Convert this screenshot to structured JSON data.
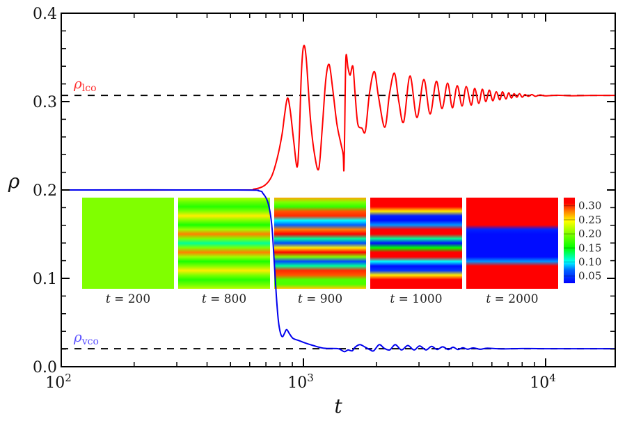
{
  "chart_data": {
    "type": "line",
    "xlabel": "t",
    "ylabel": "ρ",
    "x_scale": "log",
    "xlim": [
      100,
      19400
    ],
    "ylim": [
      0.0,
      0.4
    ],
    "x_ticks": [
      {
        "value": 100,
        "base": "10",
        "exp": "2"
      },
      {
        "value": 1000,
        "base": "10",
        "exp": "3"
      },
      {
        "value": 10000,
        "base": "10",
        "exp": "4"
      }
    ],
    "y_ticks": [
      {
        "value": 0.0,
        "label": "0.0"
      },
      {
        "value": 0.1,
        "label": "0.1"
      },
      {
        "value": 0.2,
        "label": "0.2"
      },
      {
        "value": 0.3,
        "label": "0.3"
      },
      {
        "value": 0.4,
        "label": "0.4"
      }
    ],
    "y_minor_step": 0.02,
    "grid": false,
    "reference_lines": [
      {
        "label_main": "ρ",
        "label_sub": "lco",
        "value": 0.307,
        "color": "#ff3030",
        "style": "dashed"
      },
      {
        "label_main": "ρ",
        "label_sub": "vco",
        "value": 0.0204,
        "color": "#5a50ff",
        "style": "dashed"
      }
    ],
    "series": [
      {
        "color": "#ff0000",
        "points": [
          [
            100,
            0.2
          ],
          [
            530,
            0.2
          ],
          [
            625,
            0.201
          ],
          [
            690,
            0.205
          ],
          [
            738,
            0.215
          ],
          [
            778,
            0.235
          ],
          [
            815,
            0.262
          ],
          [
            836,
            0.285
          ],
          [
            859,
            0.304
          ],
          [
            882,
            0.29
          ],
          [
            912,
            0.255
          ],
          [
            942,
            0.226
          ],
          [
            961,
            0.26
          ],
          [
            980,
            0.33
          ],
          [
            1000,
            0.362
          ],
          [
            1026,
            0.35
          ],
          [
            1069,
            0.28
          ],
          [
            1112,
            0.24
          ],
          [
            1157,
            0.224
          ],
          [
            1196,
            0.27
          ],
          [
            1237,
            0.325
          ],
          [
            1277,
            0.342
          ],
          [
            1320,
            0.315
          ],
          [
            1374,
            0.275
          ],
          [
            1429,
            0.252
          ],
          [
            1459,
            0.24
          ],
          [
            1469,
            0.222
          ],
          [
            1479,
            0.26
          ],
          [
            1497,
            0.349
          ],
          [
            1528,
            0.338
          ],
          [
            1559,
            0.33
          ],
          [
            1600,
            0.34
          ],
          [
            1633,
            0.31
          ],
          [
            1676,
            0.275
          ],
          [
            1743,
            0.27
          ],
          [
            1803,
            0.267
          ],
          [
            1875,
            0.31
          ],
          [
            1963,
            0.334
          ],
          [
            2043,
            0.305
          ],
          [
            2168,
            0.271
          ],
          [
            2270,
            0.31
          ],
          [
            2377,
            0.332
          ],
          [
            2477,
            0.3
          ],
          [
            2594,
            0.277
          ],
          [
            2754,
            0.329
          ],
          [
            2941,
            0.282
          ],
          [
            3141,
            0.325
          ],
          [
            3334,
            0.286
          ],
          [
            3538,
            0.323
          ],
          [
            3733,
            0.292
          ],
          [
            3936,
            0.321
          ],
          [
            4121,
            0.293
          ],
          [
            4315,
            0.318
          ],
          [
            4518,
            0.295
          ],
          [
            4699,
            0.317
          ],
          [
            4927,
            0.296
          ],
          [
            5093,
            0.315
          ],
          [
            5297,
            0.298
          ],
          [
            5478,
            0.314
          ],
          [
            5662,
            0.3
          ],
          [
            5853,
            0.313
          ],
          [
            6050,
            0.301
          ],
          [
            6254,
            0.311
          ],
          [
            6465,
            0.302
          ],
          [
            6634,
            0.311
          ],
          [
            6857,
            0.303
          ],
          [
            7036,
            0.31
          ],
          [
            7220,
            0.304
          ],
          [
            7409,
            0.309
          ],
          [
            7603,
            0.305
          ],
          [
            7801,
            0.309
          ],
          [
            8005,
            0.305
          ],
          [
            8214,
            0.308
          ],
          [
            8490,
            0.306
          ],
          [
            8776,
            0.308
          ],
          [
            9071,
            0.306
          ],
          [
            9486,
            0.3075
          ],
          [
            10000,
            0.3065
          ],
          [
            11120,
            0.3072
          ],
          [
            12690,
            0.3066
          ],
          [
            15480,
            0.307
          ],
          [
            19370,
            0.307
          ]
        ]
      },
      {
        "color": "#0000ee",
        "points": [
          [
            100,
            0.2
          ],
          [
            530,
            0.2
          ],
          [
            654,
            0.199
          ],
          [
            681,
            0.196
          ],
          [
            709,
            0.188
          ],
          [
            728,
            0.175
          ],
          [
            743,
            0.155
          ],
          [
            757,
            0.12
          ],
          [
            773,
            0.08
          ],
          [
            788,
            0.052
          ],
          [
            804,
            0.038
          ],
          [
            820,
            0.034
          ],
          [
            836,
            0.038
          ],
          [
            853,
            0.042
          ],
          [
            877,
            0.037
          ],
          [
            906,
            0.032
          ],
          [
            949,
            0.03
          ],
          [
            1013,
            0.027
          ],
          [
            1097,
            0.024
          ],
          [
            1211,
            0.021
          ],
          [
            1383,
            0.0205
          ],
          [
            1429,
            0.019
          ],
          [
            1479,
            0.017
          ],
          [
            1528,
            0.019
          ],
          [
            1590,
            0.018
          ],
          [
            1633,
            0.022
          ],
          [
            1710,
            0.025
          ],
          [
            1803,
            0.022
          ],
          [
            1889,
            0.019
          ],
          [
            1950,
            0.018
          ],
          [
            2056,
            0.025
          ],
          [
            2153,
            0.021
          ],
          [
            2270,
            0.019
          ],
          [
            2394,
            0.025
          ],
          [
            2541,
            0.019
          ],
          [
            2698,
            0.024
          ],
          [
            2863,
            0.019
          ],
          [
            3019,
            0.0235
          ],
          [
            3206,
            0.019
          ],
          [
            3380,
            0.023
          ],
          [
            3564,
            0.0195
          ],
          [
            3758,
            0.0225
          ],
          [
            3963,
            0.0195
          ],
          [
            4150,
            0.022
          ],
          [
            4345,
            0.0195
          ],
          [
            4550,
            0.0215
          ],
          [
            4765,
            0.0198
          ],
          [
            5024,
            0.0213
          ],
          [
            5370,
            0.0198
          ],
          [
            5740,
            0.021
          ],
          [
            6550,
            0.0202
          ],
          [
            7980,
            0.0206
          ],
          [
            10000,
            0.0204
          ],
          [
            19370,
            0.0204
          ]
        ]
      }
    ],
    "insets": {
      "colorbar": {
        "range": [
          0.0245,
          0.329
        ],
        "ticks": [
          {
            "value": 0.3,
            "label": "0.30"
          },
          {
            "value": 0.25,
            "label": "0.25"
          },
          {
            "value": 0.2,
            "label": "0.20"
          },
          {
            "value": 0.15,
            "label": "0.15"
          },
          {
            "value": 0.1,
            "label": "0.10"
          },
          {
            "value": 0.05,
            "label": "0.05"
          }
        ],
        "colormap": [
          [
            0.0245,
            "#0000ff"
          ],
          [
            0.07,
            "#0060ff"
          ],
          [
            0.1,
            "#00ffff"
          ],
          [
            0.15,
            "#00ff00"
          ],
          [
            0.2,
            "#80ff00"
          ],
          [
            0.245,
            "#ffff00"
          ],
          [
            0.28,
            "#ff8000"
          ],
          [
            0.31,
            "#ff0000"
          ],
          [
            0.329,
            "#ff0000"
          ]
        ]
      },
      "panels": [
        {
          "t_var": "t",
          "t_value": "200",
          "profile": [
            0.2,
            0.2,
            0.2,
            0.2,
            0.2,
            0.2,
            0.2,
            0.2,
            0.2,
            0.2,
            0.2,
            0.2,
            0.2,
            0.2,
            0.2,
            0.2,
            0.2,
            0.2,
            0.2,
            0.2,
            0.2
          ]
        },
        {
          "t_var": "t",
          "t_value": "800",
          "profile": [
            0.22,
            0.19,
            0.165,
            0.2,
            0.25,
            0.2,
            0.16,
            0.21,
            0.28,
            0.2,
            0.12,
            0.2,
            0.28,
            0.21,
            0.16,
            0.2,
            0.25,
            0.2,
            0.165,
            0.19,
            0.22
          ]
        },
        {
          "t_var": "t",
          "t_value": "900",
          "profile": [
            0.27,
            0.2,
            0.17,
            0.29,
            0.3,
            0.1,
            0.07,
            0.28,
            0.31,
            0.12,
            0.06,
            0.25,
            0.31,
            0.2,
            0.06,
            0.12,
            0.3,
            0.29,
            0.18,
            0.18,
            0.26
          ]
        },
        {
          "t_var": "t",
          "t_value": "1000",
          "profile": [
            0.32,
            0.32,
            0.32,
            0.25,
            0.04,
            0.03,
            0.08,
            0.32,
            0.32,
            0.12,
            0.03,
            0.15,
            0.32,
            0.32,
            0.1,
            0.03,
            0.05,
            0.25,
            0.32,
            0.32,
            0.32
          ]
        },
        {
          "t_var": "t",
          "t_value": "2000",
          "profile": [
            0.32,
            0.32,
            0.32,
            0.32,
            0.32,
            0.32,
            0.32,
            0.04,
            0.03,
            0.03,
            0.03,
            0.03,
            0.03,
            0.03,
            0.08,
            0.32,
            0.32,
            0.32,
            0.32,
            0.32,
            0.32
          ]
        }
      ]
    }
  }
}
